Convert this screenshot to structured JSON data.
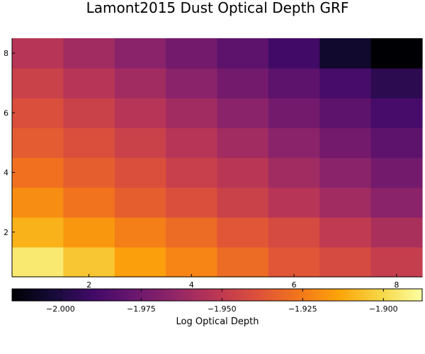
{
  "chart_data": {
    "type": "heatmap",
    "title": "Lamont2015 Dust Optical Depth GRF",
    "x": [
      1,
      2,
      3,
      4,
      5,
      6,
      7,
      8
    ],
    "y": [
      1,
      2,
      3,
      4,
      5,
      6,
      7,
      8
    ],
    "xticks": [
      2,
      4,
      6,
      8
    ],
    "yticks": [
      2,
      4,
      6,
      8
    ],
    "xlim": [
      0.5,
      8.5
    ],
    "ylim": [
      0.5,
      8.5
    ],
    "grid": false,
    "values": [
      [
        -1.895,
        -1.905,
        -1.915,
        -1.922,
        -1.93,
        -1.937,
        -1.942,
        -1.948
      ],
      [
        -1.91,
        -1.917,
        -1.924,
        -1.93,
        -1.937,
        -1.942,
        -1.95,
        -1.957
      ],
      [
        -1.92,
        -1.927,
        -1.934,
        -1.94,
        -1.946,
        -1.953,
        -1.96,
        -1.967
      ],
      [
        -1.928,
        -1.934,
        -1.94,
        -1.947,
        -1.952,
        -1.96,
        -1.967,
        -1.974
      ],
      [
        -1.935,
        -1.94,
        -1.946,
        -1.953,
        -1.96,
        -1.967,
        -1.974,
        -1.981
      ],
      [
        -1.94,
        -1.946,
        -1.953,
        -1.96,
        -1.967,
        -1.974,
        -1.981,
        -1.988
      ],
      [
        -1.946,
        -1.953,
        -1.96,
        -1.967,
        -1.974,
        -1.981,
        -1.988,
        -1.996
      ],
      [
        -1.953,
        -1.96,
        -1.967,
        -1.974,
        -1.981,
        -1.99,
        -2.005,
        -2.015
      ]
    ],
    "colorbar": {
      "label": "Log Optical Depth",
      "range": [
        -2.015,
        -1.888
      ],
      "ticks": [
        -2.0,
        -1.975,
        -1.95,
        -1.925,
        -1.9
      ],
      "tick_labels": [
        "−2.000",
        "−1.975",
        "−1.950",
        "−1.925",
        "−1.900"
      ],
      "colormap": "inferno"
    }
  }
}
